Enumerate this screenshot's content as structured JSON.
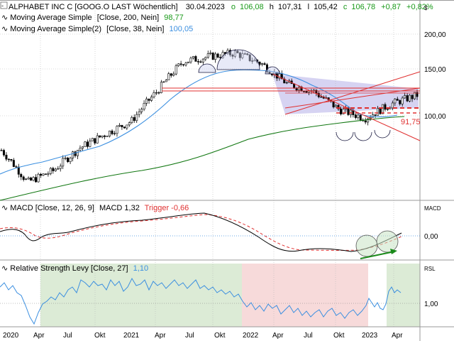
{
  "main": {
    "title": "ALPHABET INC C [GOOG.O LAST Wöchentlich]",
    "date": "30.04.2023",
    "ohlc": [
      {
        "label": "o",
        "value": "106,08",
        "color": "#1a9a1a"
      },
      {
        "label": "h",
        "value": "107,31",
        "color": "#000000"
      },
      {
        "label": "l",
        "value": "105,42",
        "color": "#000000"
      },
      {
        "label": "c",
        "value": "106,78",
        "color": "#1a9a1a"
      }
    ],
    "change": "+0,87",
    "change_pct": "+0,82%",
    "change_color": "#1a9a1a",
    "currency": "$",
    "indicators": [
      {
        "name": "Moving Average Simple",
        "params": "[Close, 200, Nein]",
        "value": "98,77",
        "color": "#1a9a1a",
        "line_color": "#117711"
      },
      {
        "name": "Moving Average Simple(2)",
        "params": "[Close, 38, Nein]",
        "value": "100,05",
        "color": "#3b8fe0",
        "line_color": "#3b8fe0"
      }
    ],
    "y_ticks": [
      {
        "label": "200,00",
        "value": 200
      },
      {
        "label": "150,00",
        "value": 150
      },
      {
        "label": "100,00",
        "value": 100
      }
    ],
    "price_annotation": {
      "label": "91,75",
      "color": "#e03030"
    }
  },
  "macd": {
    "title": "MACD [Close, 12, 26, 9]",
    "value_label": "MACD 1,32",
    "trigger_label": "Trigger -0,66",
    "trigger_color": "#e03030",
    "axis_title": "MACD",
    "y_ticks": [
      {
        "label": "0,00",
        "value": 0
      }
    ]
  },
  "rsl": {
    "title": "Relative Strength Levy [Close, 27]",
    "value": "1,10",
    "value_color": "#3b8fe0",
    "axis_title": "RSL",
    "y_ticks": [
      {
        "label": "1,00",
        "value": 1.0
      }
    ]
  },
  "x_axis": {
    "labels": [
      "2020",
      "Apr",
      "Jul",
      "Okt",
      "2021",
      "Apr",
      "Jul",
      "Okt",
      "2022",
      "Apr",
      "Jul",
      "Okt",
      "2023",
      "Apr"
    ]
  },
  "chart_data": [
    {
      "type": "candlestick",
      "title": "ALPHABET INC C [GOOG.O LAST Wöchentlich]",
      "y_scale": "log",
      "ylim": [
        55,
        240
      ],
      "x": [
        "2020-01",
        "2020-03",
        "2020-04",
        "2020-07",
        "2020-10",
        "2021-01",
        "2021-04",
        "2021-07",
        "2021-09",
        "2021-11",
        "2022-01",
        "2022-04",
        "2022-07",
        "2022-10",
        "2023-01",
        "2023-03",
        "2023-04"
      ],
      "series": [
        {
          "name": "Close",
          "values": [
            71,
            56,
            61,
            72,
            80,
            88,
            110,
            137,
            142,
            146,
            135,
            116,
            110,
            96,
            90,
            100,
            106.78
          ]
        },
        {
          "name": "Moving Average Simple",
          "values": [
            57,
            59,
            60,
            63,
            67,
            70,
            74,
            80,
            84,
            88,
            91,
            93,
            95,
            97,
            97.5,
            98,
            98.77
          ]
        },
        {
          "name": "Moving Average Simple(2)",
          "values": [
            64,
            66,
            66,
            70,
            76,
            84,
            100,
            122,
            132,
            138,
            138,
            133,
            120,
            105,
            97,
            98,
            100.05
          ]
        }
      ],
      "annotations": [
        "91,75"
      ]
    },
    {
      "type": "line",
      "title": "MACD [Close, 12, 26, 9]",
      "ylim": [
        -10,
        10
      ],
      "series": [
        {
          "name": "MACD",
          "values": [
            1,
            -6,
            -3,
            3,
            3,
            5,
            7,
            9,
            8,
            4,
            -2,
            -6,
            -7,
            -6,
            -5,
            -2,
            1.32
          ]
        },
        {
          "name": "Trigger",
          "values": [
            2,
            -4,
            -4,
            2,
            3,
            4,
            6,
            8,
            8,
            5,
            0,
            -5,
            -7,
            -6,
            -5,
            -3,
            -0.66
          ]
        }
      ]
    },
    {
      "type": "line",
      "title": "Relative Strength Levy [Close, 27]",
      "ylim": [
        0.8,
        1.2
      ],
      "series": [
        {
          "name": "RSL",
          "values": [
            1.02,
            0.85,
            1.05,
            1.08,
            1.05,
            1.1,
            1.1,
            1.08,
            1.06,
            1.05,
            1.0,
            0.92,
            0.98,
            0.94,
            0.96,
            1.08,
            1.1
          ]
        }
      ]
    }
  ]
}
